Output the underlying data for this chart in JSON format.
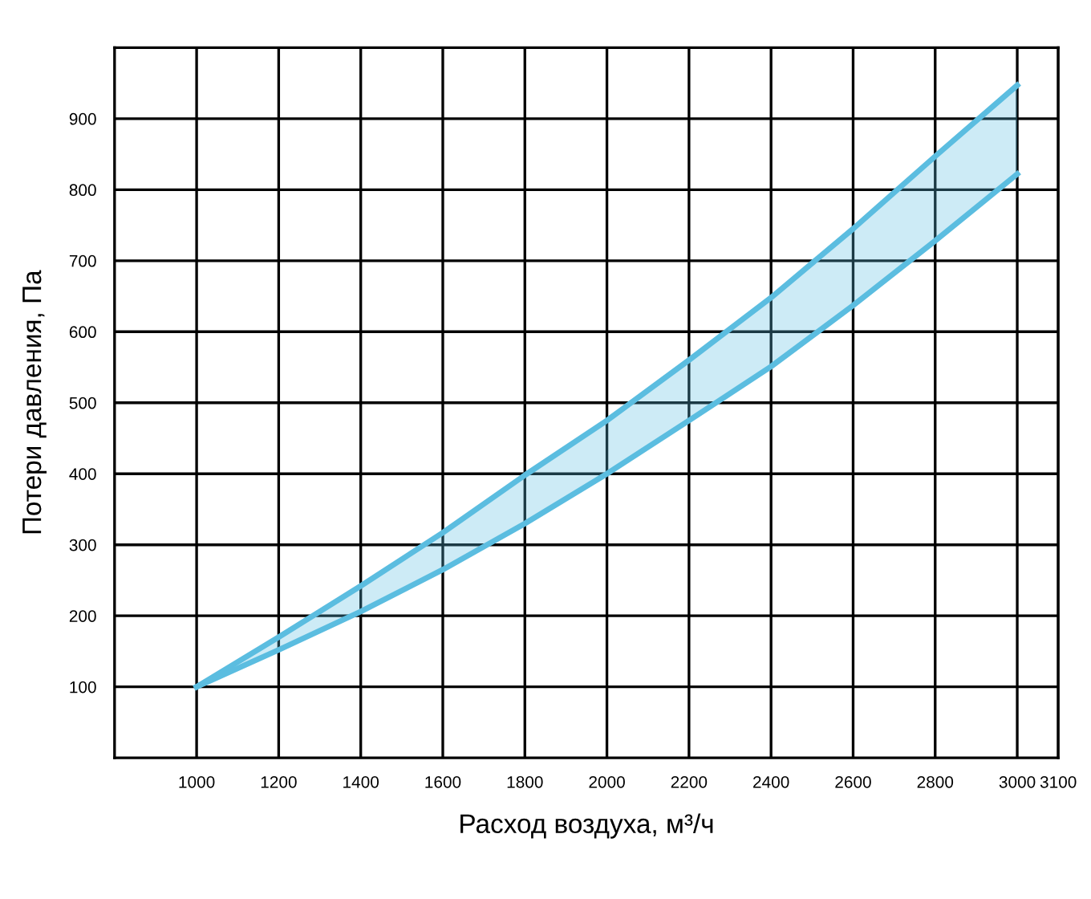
{
  "chart_data": {
    "type": "line",
    "xlabel": "Расход воздуха, м³/ч",
    "ylabel": "Потери давления, Па",
    "x": [
      1000,
      1200,
      1400,
      1600,
      1800,
      2000,
      2200,
      2400,
      2600,
      2800,
      3000
    ],
    "series": [
      {
        "color": "#5bbde0",
        "values": [
          100,
          170,
          242,
          317,
          398,
          475,
          560,
          648,
          745,
          847,
          947
        ],
        "lower": [
          100,
          152,
          206,
          265,
          330,
          400,
          475,
          551,
          637,
          728,
          822
        ],
        "upper": [
          100,
          170,
          242,
          317,
          398,
          475,
          560,
          648,
          745,
          847,
          947
        ]
      },
      {
        "color": "#5bbde0",
        "values": [
          100,
          152,
          206,
          265,
          330,
          400,
          475,
          551,
          637,
          728,
          822
        ]
      }
    ],
    "xlim": [
      800,
      3100
    ],
    "xticks": [
      1000,
      1200,
      1400,
      1600,
      1800,
      2000,
      2200,
      2400,
      2600,
      2800,
      3000,
      3100
    ],
    "ylim": [
      0,
      1000
    ],
    "yticks": [
      100,
      200,
      300,
      400,
      500,
      600,
      700,
      800,
      900
    ],
    "grid": true
  }
}
